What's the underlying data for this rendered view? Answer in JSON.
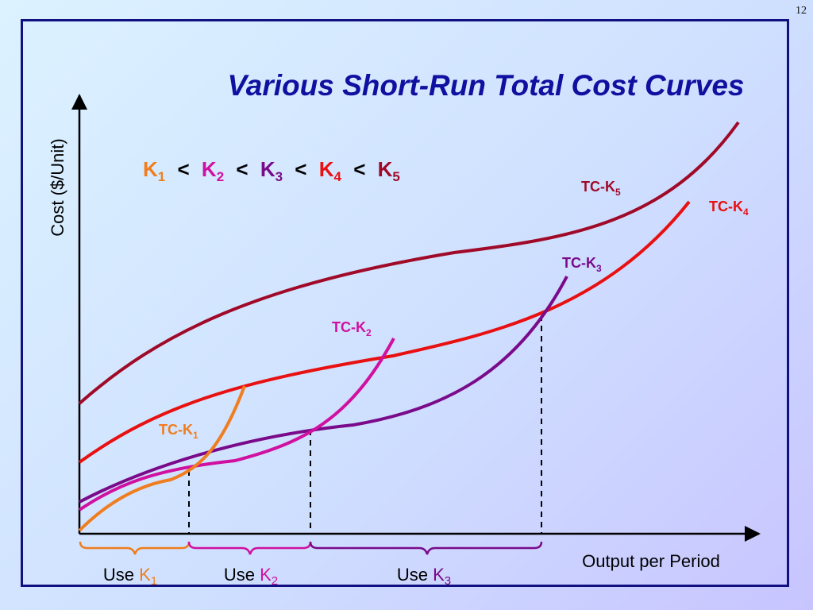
{
  "slide_number": "12",
  "title": "Various Short-Run Total Cost Curves",
  "y_axis_label": "Cost ($/Unit)",
  "x_axis_label": "Output per Period",
  "k_relation": {
    "items": [
      {
        "letter": "K",
        "sub": "1",
        "color": "#f07d1e"
      },
      {
        "letter": "K",
        "sub": "2",
        "color": "#d010a0"
      },
      {
        "letter": "K",
        "sub": "3",
        "color": "#7a0a8a"
      },
      {
        "letter": "K",
        "sub": "4",
        "color": "#e81010"
      },
      {
        "letter": "K",
        "sub": "5",
        "color": "#a00a28"
      }
    ],
    "separator": "<"
  },
  "curves": [
    {
      "id": "k1",
      "label_main": "TC-K",
      "label_sub": "1",
      "color": "#f07d1e"
    },
    {
      "id": "k2",
      "label_main": "TC-K",
      "label_sub": "2",
      "color": "#d010a0"
    },
    {
      "id": "k3",
      "label_main": "TC-K",
      "label_sub": "3",
      "color": "#7a0a8a"
    },
    {
      "id": "k4",
      "label_main": "TC-K",
      "label_sub": "4",
      "color": "#e81010"
    },
    {
      "id": "k5",
      "label_main": "TC-K",
      "label_sub": "5",
      "color": "#a00a28"
    }
  ],
  "ranges": [
    {
      "text": "Use ",
      "letter": "K",
      "sub": "1",
      "color": "#f07d1e"
    },
    {
      "text": "Use ",
      "letter": "K",
      "sub": "2",
      "color": "#d010a0"
    },
    {
      "text": "Use ",
      "letter": "K",
      "sub": "3",
      "color": "#7a0a8a"
    }
  ],
  "colors": {
    "title": "#1010a0",
    "axis": "#000000",
    "frame": "#101080"
  }
}
